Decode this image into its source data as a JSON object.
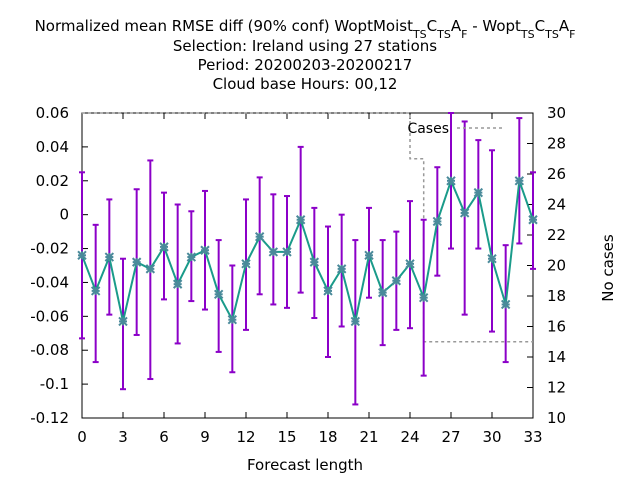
{
  "chart_data": {
    "type": "line",
    "title_lines": [
      [
        "Normalized mean RMSE diff (90% conf) WoptMoist",
        "TS",
        "C",
        "TS",
        "A",
        "F",
        " - Wopt",
        "TS",
        "C",
        "TS",
        "A",
        "F"
      ],
      [
        "Selection: Ireland using    27 stations"
      ],
      [
        "Period: 20200203-20200217"
      ],
      [
        "Cloud base   Hours: 00,12"
      ]
    ],
    "xlabel": "Forecast length",
    "ylabel_right": "No cases",
    "xlim": [
      0,
      33
    ],
    "ylim": [
      -0.12,
      0.06
    ],
    "y2lim": [
      10,
      30
    ],
    "x_ticks": [
      0,
      3,
      6,
      9,
      12,
      15,
      18,
      21,
      24,
      27,
      30,
      33
    ],
    "y_ticks": [
      -0.12,
      -0.1,
      -0.08,
      -0.06,
      -0.04,
      -0.02,
      0,
      0.02,
      0.04,
      0.06
    ],
    "y_tick_labels": [
      "-0.12",
      "-0.1",
      "-0.08",
      "-0.06",
      "-0.04",
      "-0.02",
      "0",
      "0.02",
      "0.04",
      "0.06"
    ],
    "y2_ticks": [
      10,
      12,
      14,
      16,
      18,
      20,
      22,
      24,
      26,
      28,
      30
    ],
    "series": [
      {
        "kind": "errorbar-line",
        "color": "#8b00c8",
        "line_color": "#1a9b8a",
        "marker_color": "#4a8a9a",
        "x": [
          0,
          1,
          2,
          3,
          4,
          5,
          6,
          7,
          8,
          9,
          10,
          11,
          12,
          13,
          14,
          15,
          16,
          17,
          18,
          19,
          20,
          21,
          22,
          23,
          24,
          25,
          26,
          27,
          28,
          29,
          30,
          31,
          32,
          33
        ],
        "y": [
          -0.024,
          -0.045,
          -0.025,
          -0.063,
          -0.028,
          -0.032,
          -0.019,
          -0.041,
          -0.025,
          -0.021,
          -0.047,
          -0.062,
          -0.029,
          -0.013,
          -0.022,
          -0.022,
          -0.003,
          -0.028,
          -0.045,
          -0.032,
          -0.063,
          -0.024,
          -0.046,
          -0.039,
          -0.029,
          -0.049,
          -0.004,
          0.02,
          0.001,
          0.013,
          -0.026,
          -0.053,
          0.02,
          -0.003
        ],
        "low": [
          -0.073,
          -0.087,
          -0.059,
          -0.103,
          -0.071,
          -0.097,
          -0.05,
          -0.076,
          -0.051,
          -0.056,
          -0.081,
          -0.093,
          -0.068,
          -0.047,
          -0.053,
          -0.055,
          -0.046,
          -0.061,
          -0.084,
          -0.066,
          -0.112,
          -0.049,
          -0.077,
          -0.068,
          -0.067,
          -0.095,
          -0.036,
          -0.02,
          -0.059,
          -0.02,
          -0.069,
          -0.087,
          -0.017,
          -0.032
        ],
        "high": [
          0.025,
          -0.006,
          0.009,
          -0.026,
          0.015,
          0.032,
          0.013,
          0.006,
          0.002,
          0.014,
          -0.015,
          -0.03,
          0.009,
          0.022,
          0.012,
          0.011,
          0.04,
          0.004,
          -0.007,
          -0.0,
          -0.015,
          0.004,
          -0.015,
          -0.01,
          0.008,
          -0.003,
          0.028,
          0.06,
          0.055,
          0.044,
          0.038,
          -0.018,
          0.057,
          0.025
        ]
      },
      {
        "name": "Cases",
        "kind": "step",
        "axis": "right",
        "color": "#999999",
        "x": [
          0,
          24,
          24,
          25,
          25,
          33
        ],
        "y": [
          30,
          30,
          27,
          27,
          15,
          15
        ]
      }
    ],
    "legend_position": "top-right"
  }
}
